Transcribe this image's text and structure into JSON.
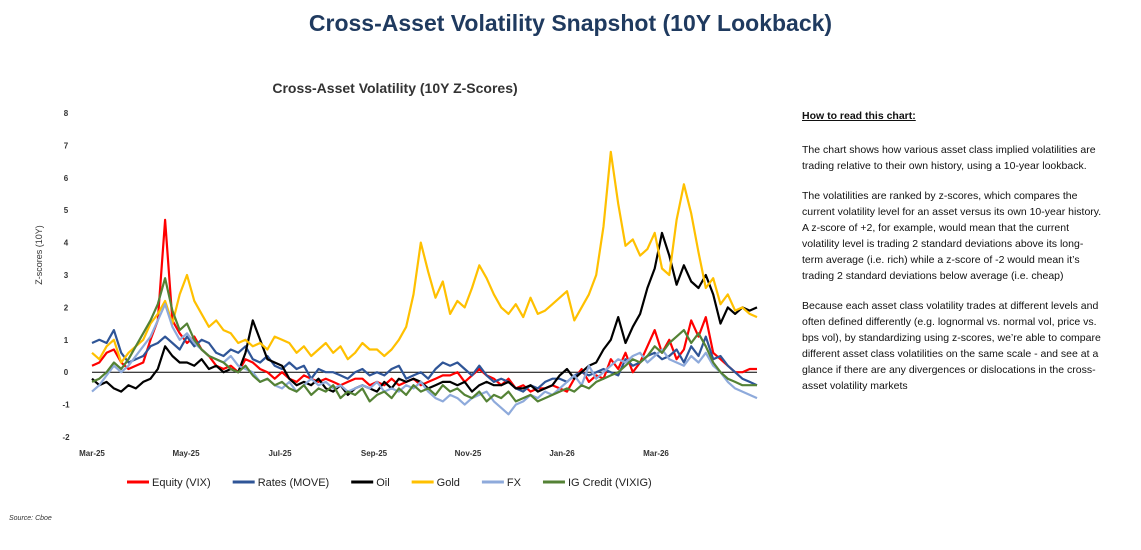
{
  "page_title": "Cross-Asset Volatility Snapshot (10Y Lookback)",
  "source": "Source: Cboe",
  "explanation": {
    "heading": "How to read this chart:",
    "paragraphs": [
      "The chart shows how various asset class implied volatilities are trading relative to their own history, using a 10-year lookback.",
      "The volatilities are ranked by z-scores, which compares the current volatility level for an asset versus its own 10-year history. A z-score of +2, for example, would mean that the current volatility level is trading 2 standard deviations above its long-term average (i.e. rich) while a z-score of -2 would mean it’s trading 2 standard deviations below average (i.e. cheap)",
      "Because each asset class volatility trades at different levels and often defined differently (e.g. lognormal vs. normal vol, price vs. bps vol), by standardizing using z-scores, we’re able to compare different asset class volatilities on the same scale - and see at a glance if there are any divergences or dislocations in the cross-asset volatility markets"
    ]
  },
  "chart_data": {
    "type": "line",
    "title": "Cross-Asset Volatility (10Y Z-Scores)",
    "xlabel": "",
    "ylabel": "Z-scores (10Y)",
    "ylim": [
      -2,
      8
    ],
    "yticks": [
      -2,
      -1,
      0,
      1,
      2,
      3,
      4,
      5,
      6,
      7,
      8
    ],
    "x_tick_labels": [
      "Mar-25",
      "May-25",
      "Jul-25",
      "Sep-25",
      "Nov-25",
      "Jan-26",
      "Mar-26"
    ],
    "x_range": [
      "2025-03",
      "2026-05"
    ],
    "legend_position": "bottom",
    "grid": false,
    "series": [
      {
        "name": "Equity (VIX)",
        "color": "#ff0000",
        "values": [
          0.2,
          0.3,
          0.6,
          0.7,
          0.3,
          0.1,
          0.2,
          0.3,
          1.0,
          1.6,
          4.7,
          1.6,
          1.2,
          0.9,
          1.1,
          0.7,
          0.5,
          0.2,
          0.1,
          0.2,
          0.0,
          0.4,
          0.3,
          0.1,
          0.0,
          -0.2,
          0.0,
          -0.2,
          -0.3,
          -0.1,
          -0.2,
          -0.3,
          -0.2,
          -0.3,
          -0.4,
          -0.3,
          -0.2,
          -0.2,
          -0.4,
          -0.3,
          -0.4,
          -0.2,
          -0.4,
          -0.3,
          -0.2,
          -0.4,
          -0.3,
          -0.2,
          -0.1,
          -0.1,
          0.0,
          -0.3,
          -0.1,
          0.1,
          -0.1,
          -0.2,
          -0.4,
          -0.2,
          -0.5,
          -0.4,
          -0.6,
          -0.5,
          -0.5,
          -0.4,
          -0.5,
          -0.6,
          -0.2,
          0.1,
          -0.3,
          -0.1,
          -0.2,
          0.4,
          0.1,
          0.6,
          0.0,
          0.3,
          0.8,
          1.3,
          0.6,
          1.0,
          0.4,
          0.7,
          1.6,
          1.1,
          1.7,
          0.6,
          0.4,
          0.2,
          0.0,
          0.0,
          0.1,
          0.1
        ]
      },
      {
        "name": "Rates (MOVE)",
        "color": "#2f5597",
        "values": [
          0.9,
          1.0,
          0.9,
          1.3,
          0.6,
          0.3,
          0.4,
          0.5,
          0.8,
          0.9,
          1.1,
          0.9,
          0.7,
          1.1,
          0.8,
          1.0,
          0.9,
          0.6,
          0.5,
          0.7,
          0.6,
          0.8,
          0.4,
          0.3,
          0.5,
          0.2,
          0.1,
          0.3,
          0.1,
          0.2,
          -0.2,
          0.1,
          0.0,
          0.0,
          -0.1,
          -0.2,
          0.0,
          0.1,
          -0.1,
          0.0,
          -0.1,
          0.1,
          0.2,
          -0.2,
          -0.1,
          0.0,
          -0.2,
          0.1,
          0.3,
          0.2,
          0.3,
          0.1,
          -0.1,
          0.2,
          -0.1,
          -0.3,
          -0.2,
          -0.3,
          -0.5,
          -0.6,
          -0.4,
          -0.5,
          -0.3,
          -0.2,
          -0.2,
          -0.3,
          -0.1,
          0.0,
          -0.1,
          0.0,
          0.1,
          0.0,
          -0.1,
          0.4,
          0.2,
          0.3,
          0.5,
          0.6,
          0.4,
          0.5,
          0.7,
          0.3,
          0.8,
          0.5,
          1.1,
          0.4,
          0.5,
          0.2,
          0.0,
          -0.2,
          -0.3,
          -0.4
        ]
      },
      {
        "name": "Oil",
        "color": "#000000",
        "values": [
          -0.2,
          -0.4,
          -0.3,
          -0.5,
          -0.6,
          -0.4,
          -0.5,
          -0.3,
          -0.2,
          0.1,
          0.8,
          0.5,
          0.3,
          0.3,
          0.2,
          0.4,
          0.1,
          0.2,
          0.0,
          0.1,
          0.0,
          0.6,
          1.6,
          1.0,
          0.4,
          0.3,
          0.2,
          -0.2,
          -0.4,
          -0.3,
          -0.4,
          -0.2,
          -0.5,
          -0.6,
          -0.4,
          -0.7,
          -0.5,
          -0.4,
          -0.5,
          -0.6,
          -0.3,
          -0.5,
          -0.2,
          -0.3,
          -0.2,
          -0.3,
          -0.5,
          -0.4,
          -0.3,
          -0.3,
          -0.4,
          -0.3,
          -0.6,
          -0.4,
          -0.3,
          -0.4,
          -0.4,
          -0.3,
          -0.5,
          -0.5,
          -0.4,
          -0.6,
          -0.5,
          -0.4,
          -0.1,
          0.1,
          -0.2,
          0.0,
          0.2,
          0.3,
          0.7,
          1.0,
          1.7,
          0.9,
          1.4,
          1.8,
          2.6,
          3.2,
          4.3,
          3.6,
          2.7,
          3.3,
          2.8,
          2.6,
          3.0,
          2.4,
          1.5,
          2.0,
          1.8,
          2.0,
          1.9,
          2.0
        ]
      },
      {
        "name": "Gold",
        "color": "#ffc000",
        "values": [
          0.6,
          0.4,
          0.8,
          1.0,
          0.3,
          0.6,
          0.8,
          1.0,
          1.5,
          1.8,
          2.2,
          1.5,
          2.4,
          3.0,
          2.2,
          1.8,
          1.4,
          1.6,
          1.3,
          1.2,
          0.9,
          1.0,
          0.8,
          0.9,
          0.7,
          1.1,
          1.0,
          0.9,
          0.6,
          0.8,
          0.5,
          0.7,
          0.9,
          0.6,
          0.8,
          0.4,
          0.6,
          0.9,
          0.7,
          0.7,
          0.5,
          0.7,
          1.0,
          1.4,
          2.4,
          4.0,
          3.1,
          2.3,
          2.8,
          1.8,
          2.2,
          2.0,
          2.6,
          3.3,
          2.9,
          2.4,
          2.0,
          1.8,
          2.1,
          1.7,
          2.3,
          1.8,
          1.9,
          2.1,
          2.3,
          2.5,
          1.6,
          2.0,
          2.4,
          3.0,
          4.5,
          6.8,
          5.2,
          3.9,
          4.1,
          3.6,
          3.8,
          4.3,
          3.2,
          3.0,
          4.7,
          5.8,
          4.9,
          3.7,
          2.6,
          2.9,
          2.1,
          2.4,
          1.9,
          2.0,
          1.8,
          1.7
        ]
      },
      {
        "name": "FX",
        "color": "#8eaadb",
        "values": [
          -0.6,
          -0.4,
          -0.1,
          0.2,
          0.0,
          0.2,
          0.5,
          0.8,
          1.1,
          1.6,
          2.1,
          1.4,
          1.0,
          1.2,
          0.9,
          0.7,
          0.5,
          0.4,
          0.3,
          0.5,
          0.2,
          0.1,
          0.0,
          -0.3,
          -0.2,
          -0.4,
          -0.5,
          -0.3,
          -0.6,
          -0.4,
          -0.2,
          -0.4,
          -0.3,
          -0.5,
          -0.4,
          -0.6,
          -0.5,
          -0.4,
          -0.5,
          -0.3,
          -0.6,
          -0.5,
          -0.6,
          -0.4,
          -0.5,
          -0.3,
          -0.6,
          -0.8,
          -0.9,
          -0.7,
          -0.8,
          -1.0,
          -0.8,
          -0.7,
          -0.6,
          -0.9,
          -1.1,
          -1.3,
          -1.0,
          -0.9,
          -0.7,
          -0.8,
          -0.6,
          -0.7,
          -0.5,
          -0.3,
          -0.1,
          -0.4,
          0.2,
          -0.2,
          0.0,
          0.2,
          0.4,
          0.3,
          0.5,
          0.6,
          0.3,
          0.5,
          0.7,
          0.4,
          0.3,
          0.2,
          0.5,
          0.3,
          0.6,
          0.2,
          0.0,
          -0.3,
          -0.5,
          -0.6,
          -0.7,
          -0.8
        ]
      },
      {
        "name": "IG Credit (VIXIG)",
        "color": "#548235",
        "values": [
          -0.3,
          -0.2,
          0.0,
          0.3,
          0.1,
          0.4,
          0.8,
          1.2,
          1.6,
          2.1,
          2.9,
          1.9,
          1.3,
          1.5,
          1.0,
          0.7,
          0.5,
          0.4,
          0.3,
          0.1,
          0.0,
          0.2,
          -0.1,
          -0.3,
          -0.2,
          -0.4,
          -0.3,
          -0.5,
          -0.6,
          -0.4,
          -0.7,
          -0.5,
          -0.6,
          -0.4,
          -0.8,
          -0.6,
          -0.7,
          -0.5,
          -0.9,
          -0.7,
          -0.6,
          -0.8,
          -0.5,
          -0.7,
          -0.4,
          -0.6,
          -0.5,
          -0.7,
          -0.4,
          -0.6,
          -0.5,
          -0.7,
          -0.8,
          -0.6,
          -0.9,
          -0.7,
          -0.8,
          -0.6,
          -0.9,
          -0.8,
          -0.7,
          -0.9,
          -0.8,
          -0.7,
          -0.6,
          -0.5,
          -0.6,
          -0.4,
          -0.5,
          -0.3,
          -0.2,
          -0.1,
          0.0,
          0.2,
          0.4,
          0.3,
          0.5,
          0.8,
          0.6,
          0.9,
          1.1,
          1.3,
          0.9,
          1.2,
          0.8,
          0.3,
          0.0,
          -0.2,
          -0.3,
          -0.4,
          -0.4,
          -0.4
        ]
      }
    ]
  }
}
